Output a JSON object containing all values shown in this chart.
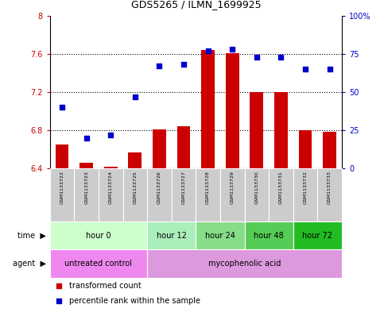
{
  "title": "GDS5265 / ILMN_1699925",
  "samples": [
    "GSM1133722",
    "GSM1133723",
    "GSM1133724",
    "GSM1133725",
    "GSM1133726",
    "GSM1133727",
    "GSM1133728",
    "GSM1133729",
    "GSM1133730",
    "GSM1133731",
    "GSM1133732",
    "GSM1133733"
  ],
  "bar_values": [
    6.65,
    6.46,
    6.42,
    6.57,
    6.81,
    6.84,
    7.64,
    7.61,
    7.2,
    7.2,
    6.8,
    6.78
  ],
  "bar_base": 6.4,
  "scatter_values": [
    40,
    20,
    22,
    47,
    67,
    68,
    77,
    78,
    73,
    73,
    65,
    65
  ],
  "ylim_left": [
    6.4,
    8.0
  ],
  "ylim_right": [
    0,
    100
  ],
  "yticks_left": [
    6.4,
    6.8,
    7.2,
    7.6,
    8.0
  ],
  "ytick_labels_left": [
    "6.4",
    "6.8",
    "7.2",
    "7.6",
    "8"
  ],
  "yticks_right": [
    0,
    25,
    50,
    75,
    100
  ],
  "ytick_labels_right": [
    "0",
    "25",
    "50",
    "75",
    "100%"
  ],
  "bar_color": "#cc0000",
  "scatter_color": "#0000cc",
  "dotted_lines": [
    6.8,
    7.2,
    7.6
  ],
  "time_groups": [
    {
      "label": "hour 0",
      "start": 0,
      "end": 3
    },
    {
      "label": "hour 12",
      "start": 4,
      "end": 5
    },
    {
      "label": "hour 24",
      "start": 6,
      "end": 7
    },
    {
      "label": "hour 48",
      "start": 8,
      "end": 9
    },
    {
      "label": "hour 72",
      "start": 10,
      "end": 11
    }
  ],
  "time_colors": [
    "#ccffcc",
    "#aaeebb",
    "#88dd88",
    "#55cc55",
    "#22bb22"
  ],
  "agent_groups": [
    {
      "label": "untreated control",
      "start": 0,
      "end": 3
    },
    {
      "label": "mycophenolic acid",
      "start": 4,
      "end": 11
    }
  ],
  "agent_colors": [
    "#ee88ee",
    "#dd99dd"
  ],
  "legend_items": [
    {
      "label": "transformed count",
      "color": "#cc0000"
    },
    {
      "label": "percentile rank within the sample",
      "color": "#0000cc"
    }
  ],
  "tick_color_left": "#cc0000",
  "tick_color_right": "#0000cc",
  "sample_bg": "#cccccc",
  "bg_color": "#ffffff"
}
